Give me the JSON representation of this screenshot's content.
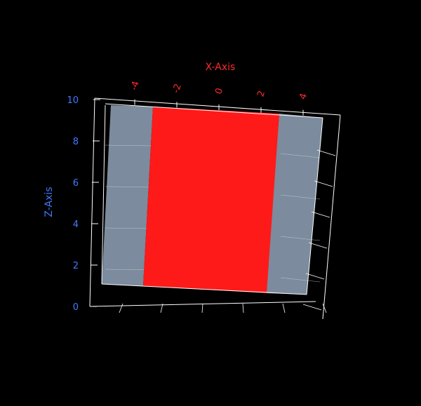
{
  "chart_data": {
    "type": "3d-surface",
    "title": "",
    "xlabel": "X-Axis",
    "zlabel": "Z-Axis",
    "x_ticks": [
      "-4",
      "-2",
      "0",
      "2",
      "4"
    ],
    "z_ticks": [
      "0",
      "2",
      "4",
      "6",
      "8",
      "10"
    ],
    "xlim": [
      -5,
      5
    ],
    "zlim": [
      0,
      10
    ],
    "grid": true,
    "colors": {
      "background": "#000000",
      "x_axis_label": "#ff2a2a",
      "z_axis_label": "#3f7bff",
      "surface": "#ff1a1a",
      "box_panel": "#8797aa",
      "axis_lines": "#ffffff",
      "grid_lines": "#d9e0e8"
    }
  }
}
